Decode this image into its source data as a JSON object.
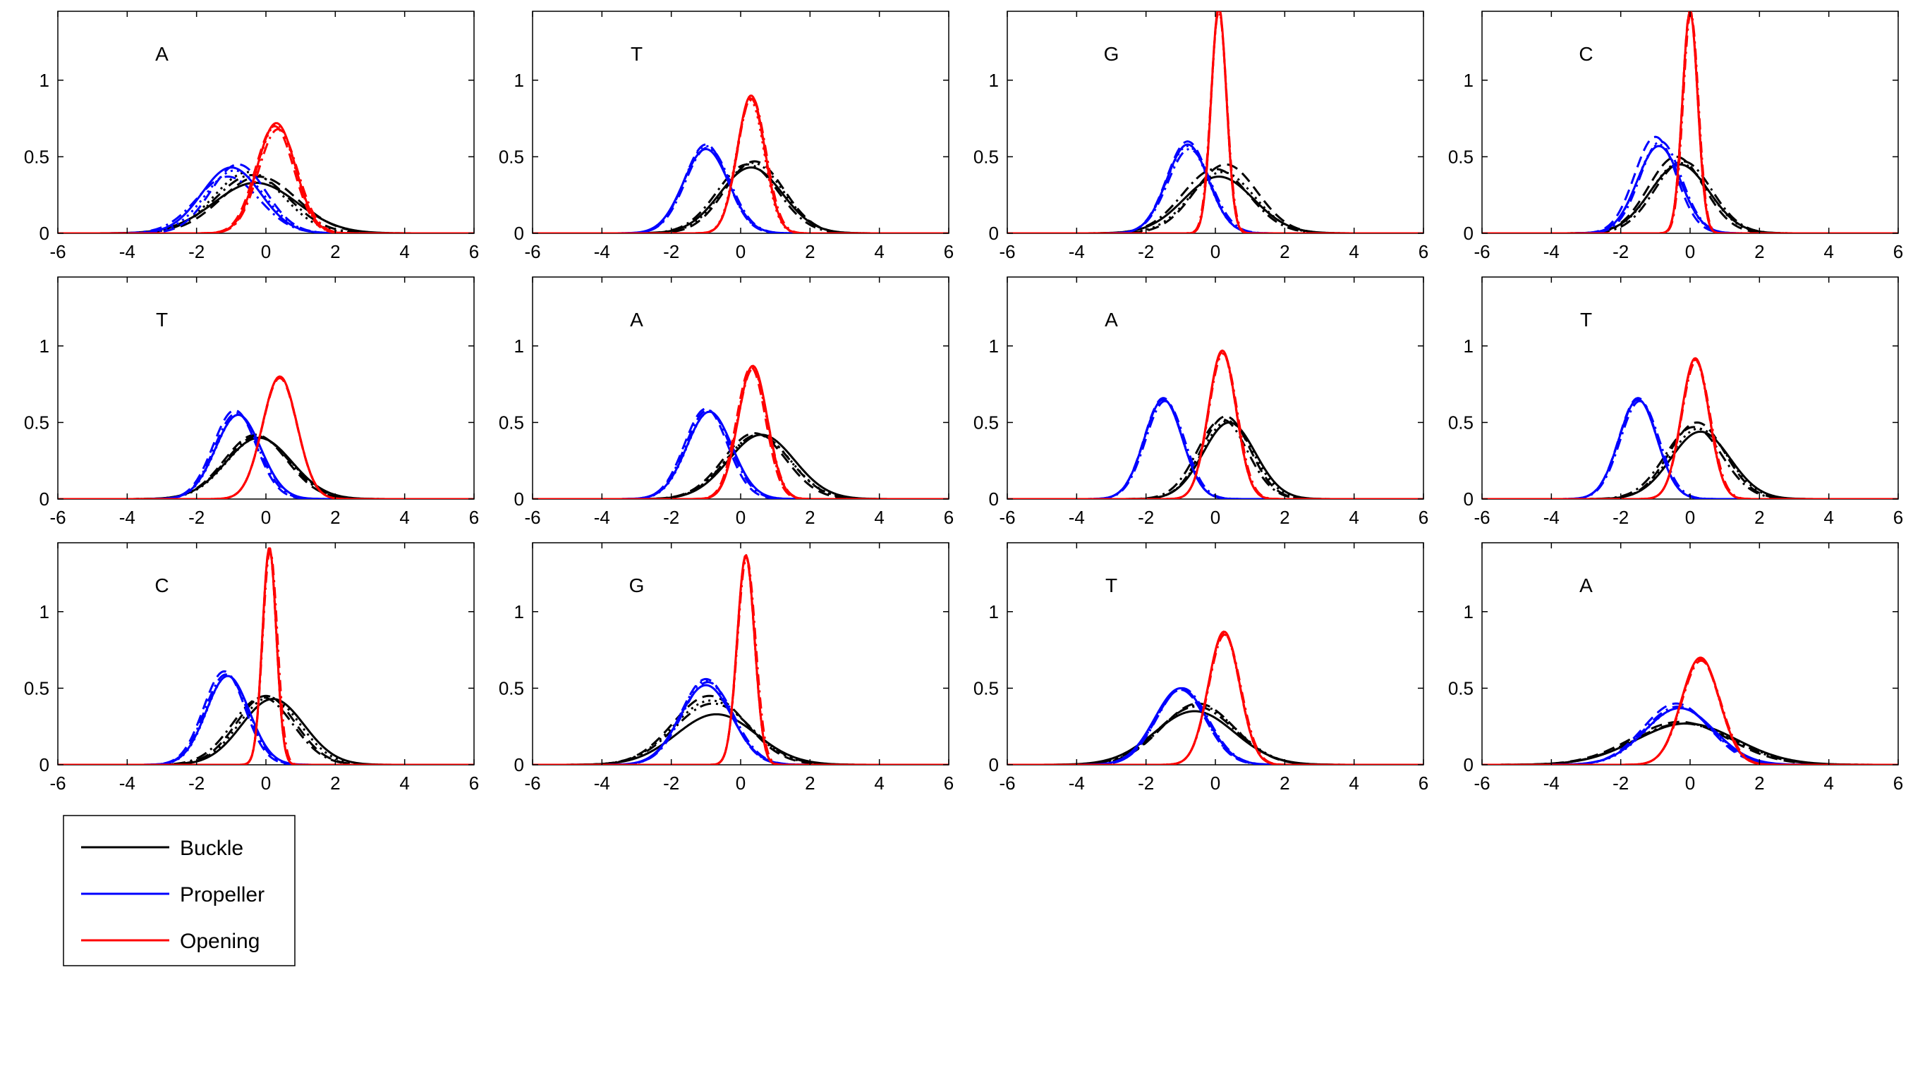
{
  "chart_data": {
    "type": "line",
    "layout": "3x4 small multiples",
    "xlim": [
      -6,
      6
    ],
    "ylim": [
      0,
      1.45
    ],
    "xticks": [
      -6,
      -4,
      -2,
      0,
      2,
      4,
      6
    ],
    "yticks": [
      0,
      0.5,
      1
    ],
    "grid": false,
    "legend": {
      "placement": "bottom-left",
      "entries": [
        {
          "name": "Buckle",
          "color": "#000000"
        },
        {
          "name": "Propeller",
          "color": "#0000ff"
        },
        {
          "name": "Opening",
          "color": "#ff0000"
        }
      ]
    },
    "variant_styles": [
      "solid",
      "dashed",
      "dashdot",
      "dotted"
    ],
    "panels": [
      {
        "label": "A",
        "series": [
          {
            "name": "Buckle",
            "gaussians": [
              [
                -0.3,
                1.2,
                0.33
              ],
              [
                -0.2,
                1.1,
                0.37
              ],
              [
                -0.4,
                1.05,
                0.38
              ],
              [
                -0.5,
                1.0,
                0.4
              ]
            ]
          },
          {
            "name": "Propeller",
            "gaussians": [
              [
                -1.0,
                0.85,
                0.43
              ],
              [
                -0.8,
                0.8,
                0.45
              ],
              [
                -1.1,
                0.9,
                0.37
              ],
              [
                -0.9,
                0.85,
                0.41
              ]
            ]
          },
          {
            "name": "Opening",
            "gaussians": [
              [
                0.3,
                0.55,
                0.72
              ],
              [
                0.25,
                0.55,
                0.7
              ],
              [
                0.35,
                0.56,
                0.68
              ],
              [
                0.3,
                0.54,
                0.71
              ]
            ]
          }
        ]
      },
      {
        "label": "T",
        "series": [
          {
            "name": "Buckle",
            "gaussians": [
              [
                0.3,
                0.9,
                0.43
              ],
              [
                0.4,
                0.85,
                0.47
              ],
              [
                0.2,
                0.88,
                0.45
              ],
              [
                0.35,
                0.87,
                0.46
              ]
            ]
          },
          {
            "name": "Propeller",
            "gaussians": [
              [
                -1.0,
                0.65,
                0.55
              ],
              [
                -1.0,
                0.62,
                0.58
              ],
              [
                -0.95,
                0.64,
                0.56
              ],
              [
                -1.0,
                0.63,
                0.57
              ]
            ]
          },
          {
            "name": "Opening",
            "gaussians": [
              [
                0.3,
                0.4,
                0.9
              ],
              [
                0.3,
                0.4,
                0.88
              ],
              [
                0.32,
                0.41,
                0.89
              ],
              [
                0.28,
                0.4,
                0.87
              ]
            ]
          }
        ]
      },
      {
        "label": "G",
        "series": [
          {
            "name": "Buckle",
            "gaussians": [
              [
                0.1,
                1.0,
                0.37
              ],
              [
                0.3,
                0.9,
                0.45
              ],
              [
                0.0,
                0.95,
                0.42
              ],
              [
                0.2,
                0.92,
                0.4
              ]
            ]
          },
          {
            "name": "Propeller",
            "gaussians": [
              [
                -0.8,
                0.6,
                0.58
              ],
              [
                -0.8,
                0.6,
                0.6
              ],
              [
                -0.75,
                0.62,
                0.55
              ],
              [
                -0.8,
                0.6,
                0.57
              ]
            ]
          },
          {
            "name": "Opening",
            "gaussians": [
              [
                0.1,
                0.22,
                1.48
              ],
              [
                0.1,
                0.22,
                1.47
              ],
              [
                0.1,
                0.23,
                1.45
              ],
              [
                0.1,
                0.22,
                1.46
              ]
            ]
          }
        ]
      },
      {
        "label": "C",
        "series": [
          {
            "name": "Buckle",
            "gaussians": [
              [
                -0.3,
                0.85,
                0.45
              ],
              [
                -0.4,
                0.8,
                0.5
              ],
              [
                -0.2,
                0.82,
                0.47
              ],
              [
                -0.3,
                0.83,
                0.46
              ]
            ]
          },
          {
            "name": "Propeller",
            "gaussians": [
              [
                -0.9,
                0.62,
                0.57
              ],
              [
                -1.0,
                0.6,
                0.63
              ],
              [
                -0.85,
                0.6,
                0.6
              ],
              [
                -0.9,
                0.61,
                0.58
              ]
            ]
          },
          {
            "name": "Opening",
            "gaussians": [
              [
                0.0,
                0.22,
                1.45
              ],
              [
                0.0,
                0.22,
                1.46
              ],
              [
                0.02,
                0.22,
                1.44
              ],
              [
                0.0,
                0.22,
                1.45
              ]
            ]
          }
        ]
      },
      {
        "label": "T",
        "series": [
          {
            "name": "Buckle",
            "gaussians": [
              [
                -0.2,
                0.95,
                0.4
              ],
              [
                -0.3,
                0.9,
                0.42
              ],
              [
                -0.25,
                0.92,
                0.41
              ],
              [
                -0.2,
                0.93,
                0.4
              ]
            ]
          },
          {
            "name": "Propeller",
            "gaussians": [
              [
                -0.8,
                0.65,
                0.55
              ],
              [
                -0.9,
                0.62,
                0.58
              ],
              [
                -0.85,
                0.63,
                0.56
              ],
              [
                -0.8,
                0.64,
                0.55
              ]
            ]
          },
          {
            "name": "Opening",
            "gaussians": [
              [
                0.4,
                0.5,
                0.8
              ],
              [
                0.4,
                0.5,
                0.79
              ],
              [
                0.4,
                0.5,
                0.8
              ],
              [
                0.4,
                0.5,
                0.8
              ]
            ]
          }
        ]
      },
      {
        "label": "A",
        "series": [
          {
            "name": "Buckle",
            "gaussians": [
              [
                0.6,
                0.95,
                0.42
              ],
              [
                0.4,
                0.9,
                0.43
              ],
              [
                0.5,
                0.92,
                0.42
              ],
              [
                0.5,
                0.93,
                0.42
              ]
            ]
          },
          {
            "name": "Propeller",
            "gaussians": [
              [
                -0.9,
                0.65,
                0.57
              ],
              [
                -1.0,
                0.62,
                0.59
              ],
              [
                -0.95,
                0.64,
                0.58
              ],
              [
                -0.9,
                0.64,
                0.57
              ]
            ]
          },
          {
            "name": "Opening",
            "gaussians": [
              [
                0.35,
                0.42,
                0.87
              ],
              [
                0.3,
                0.42,
                0.86
              ],
              [
                0.35,
                0.43,
                0.85
              ],
              [
                0.33,
                0.42,
                0.86
              ]
            ]
          }
        ]
      },
      {
        "label": "A",
        "series": [
          {
            "name": "Buckle",
            "gaussians": [
              [
                0.4,
                0.75,
                0.5
              ],
              [
                0.3,
                0.7,
                0.54
              ],
              [
                0.2,
                0.72,
                0.52
              ],
              [
                0.35,
                0.73,
                0.51
              ]
            ]
          },
          {
            "name": "Propeller",
            "gaussians": [
              [
                -1.5,
                0.55,
                0.65
              ],
              [
                -1.5,
                0.55,
                0.66
              ],
              [
                -1.45,
                0.56,
                0.64
              ],
              [
                -1.5,
                0.55,
                0.65
              ]
            ]
          },
          {
            "name": "Opening",
            "gaussians": [
              [
                0.2,
                0.4,
                0.97
              ],
              [
                0.2,
                0.4,
                0.96
              ],
              [
                0.22,
                0.41,
                0.95
              ],
              [
                0.2,
                0.4,
                0.96
              ]
            ]
          }
        ]
      },
      {
        "label": "T",
        "series": [
          {
            "name": "Buckle",
            "gaussians": [
              [
                0.3,
                0.85,
                0.44
              ],
              [
                0.2,
                0.8,
                0.5
              ],
              [
                0.1,
                0.82,
                0.47
              ],
              [
                0.25,
                0.83,
                0.46
              ]
            ]
          },
          {
            "name": "Propeller",
            "gaussians": [
              [
                -1.5,
                0.55,
                0.65
              ],
              [
                -1.5,
                0.55,
                0.66
              ],
              [
                -1.45,
                0.56,
                0.64
              ],
              [
                -1.5,
                0.55,
                0.65
              ]
            ]
          },
          {
            "name": "Opening",
            "gaussians": [
              [
                0.15,
                0.4,
                0.92
              ],
              [
                0.15,
                0.4,
                0.91
              ],
              [
                0.17,
                0.41,
                0.9
              ],
              [
                0.15,
                0.4,
                0.91
              ]
            ]
          }
        ]
      },
      {
        "label": "C",
        "series": [
          {
            "name": "Buckle",
            "gaussians": [
              [
                0.2,
                0.9,
                0.43
              ],
              [
                0.0,
                0.85,
                0.45
              ],
              [
                -0.1,
                0.87,
                0.44
              ],
              [
                0.1,
                0.88,
                0.44
              ]
            ]
          },
          {
            "name": "Propeller",
            "gaussians": [
              [
                -1.1,
                0.62,
                0.58
              ],
              [
                -1.2,
                0.6,
                0.61
              ],
              [
                -1.15,
                0.61,
                0.59
              ],
              [
                -1.1,
                0.61,
                0.58
              ]
            ]
          },
          {
            "name": "Opening",
            "gaussians": [
              [
                0.1,
                0.2,
                1.42
              ],
              [
                0.1,
                0.2,
                1.41
              ],
              [
                0.12,
                0.21,
                1.4
              ],
              [
                0.1,
                0.2,
                1.41
              ]
            ]
          }
        ]
      },
      {
        "label": "G",
        "series": [
          {
            "name": "Buckle",
            "gaussians": [
              [
                -0.7,
                1.15,
                0.33
              ],
              [
                -0.9,
                1.05,
                0.45
              ],
              [
                -0.8,
                1.1,
                0.4
              ],
              [
                -0.85,
                1.08,
                0.42
              ]
            ]
          },
          {
            "name": "Propeller",
            "gaussians": [
              [
                -1.0,
                0.75,
                0.52
              ],
              [
                -1.0,
                0.72,
                0.56
              ],
              [
                -0.95,
                0.74,
                0.54
              ],
              [
                -1.0,
                0.73,
                0.55
              ]
            ]
          },
          {
            "name": "Opening",
            "gaussians": [
              [
                0.15,
                0.25,
                1.37
              ],
              [
                0.15,
                0.25,
                1.36
              ],
              [
                0.17,
                0.26,
                1.35
              ],
              [
                0.15,
                0.25,
                1.36
              ]
            ]
          }
        ]
      },
      {
        "label": "T",
        "series": [
          {
            "name": "Buckle",
            "gaussians": [
              [
                -0.6,
                1.15,
                0.35
              ],
              [
                -0.5,
                1.05,
                0.4
              ],
              [
                -0.55,
                1.1,
                0.38
              ],
              [
                -0.5,
                1.08,
                0.39
              ]
            ]
          },
          {
            "name": "Propeller",
            "gaussians": [
              [
                -1.0,
                0.75,
                0.5
              ],
              [
                -1.0,
                0.72,
                0.49
              ],
              [
                -0.95,
                0.74,
                0.5
              ],
              [
                -1.0,
                0.73,
                0.49
              ]
            ]
          },
          {
            "name": "Opening",
            "gaussians": [
              [
                0.25,
                0.45,
                0.87
              ],
              [
                0.25,
                0.45,
                0.86
              ],
              [
                0.27,
                0.46,
                0.85
              ],
              [
                0.25,
                0.45,
                0.86
              ]
            ]
          }
        ]
      },
      {
        "label": "A",
        "series": [
          {
            "name": "Buckle",
            "gaussians": [
              [
                -0.1,
                1.45,
                0.27
              ],
              [
                -0.3,
                1.4,
                0.28
              ],
              [
                -0.2,
                1.42,
                0.27
              ],
              [
                -0.15,
                1.43,
                0.27
              ]
            ]
          },
          {
            "name": "Propeller",
            "gaussians": [
              [
                -0.3,
                1.0,
                0.37
              ],
              [
                -0.4,
                0.95,
                0.4
              ],
              [
                -0.35,
                0.97,
                0.38
              ],
              [
                -0.3,
                0.98,
                0.37
              ]
            ]
          },
          {
            "name": "Opening",
            "gaussians": [
              [
                0.3,
                0.55,
                0.7
              ],
              [
                0.3,
                0.55,
                0.69
              ],
              [
                0.32,
                0.56,
                0.68
              ],
              [
                0.3,
                0.55,
                0.69
              ]
            ]
          }
        ]
      }
    ]
  }
}
